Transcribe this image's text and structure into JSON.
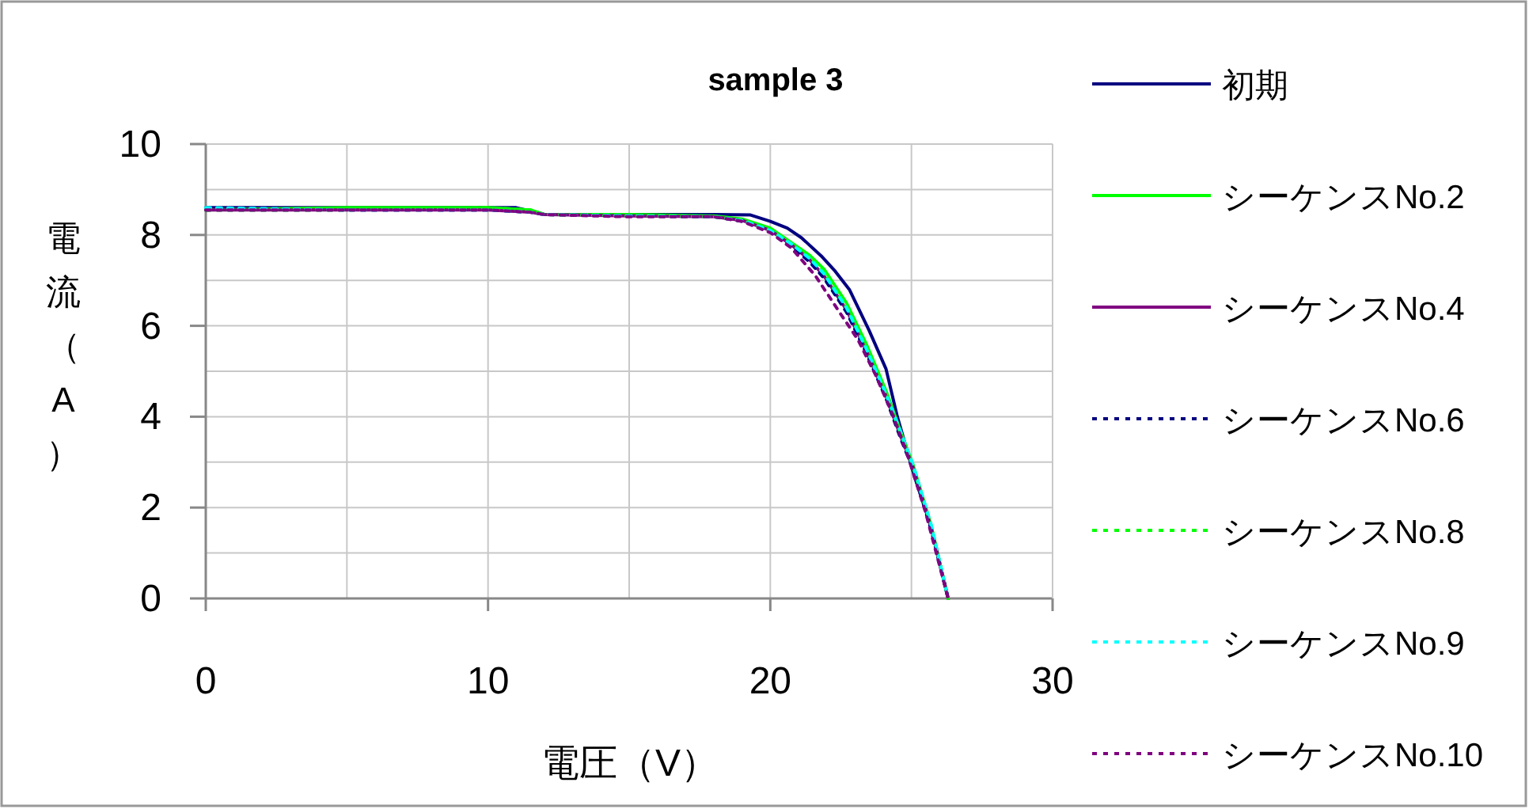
{
  "chart_data": {
    "type": "line",
    "title": "sample 3",
    "xlabel": "電圧（V）",
    "ylabel": "電流（A）",
    "xlim": [
      0,
      30
    ],
    "ylim": [
      0,
      10
    ],
    "xticks": [
      0,
      {
        "value": 5,
        "label": null
      },
      10,
      {
        "value": 15,
        "label": null
      },
      20,
      {
        "value": 25,
        "label": null
      },
      30
    ],
    "yticks": [
      0,
      {
        "value": 1,
        "label": null
      },
      2,
      {
        "value": 3,
        "label": null
      },
      4,
      {
        "value": 5,
        "label": null
      },
      6,
      {
        "value": 7,
        "label": null
      },
      8,
      {
        "value": 9,
        "label": null
      },
      10
    ],
    "grid": true,
    "legend": "right",
    "marker": "none",
    "series": [
      {
        "name": "初期",
        "color": "#000080",
        "line_style": "solid",
        "x": [
          0,
          5,
          10,
          11,
          12,
          15,
          18,
          19.3,
          20,
          20.6,
          21.1,
          21.8,
          22.3,
          22.8,
          23.5,
          24.1,
          24.5,
          25.1,
          25.7,
          26.3
        ],
        "values": [
          8.6,
          8.6,
          8.6,
          8.6,
          8.45,
          8.45,
          8.45,
          8.44,
          8.3,
          8.15,
          7.94,
          7.54,
          7.2,
          6.8,
          5.9,
          5.05,
          4.0,
          2.7,
          1.57,
          0
        ]
      },
      {
        "name": "シーケンスNo.2",
        "color": "#00ff00",
        "line_style": "solid",
        "x": [
          0,
          5,
          10,
          11.5,
          12,
          15,
          18,
          19,
          20,
          20.75,
          21.4,
          21.9,
          22.7,
          23.4,
          24.1,
          24.6,
          25.05,
          25.7,
          26.3
        ],
        "values": [
          8.55,
          8.6,
          8.6,
          8.55,
          8.45,
          8.45,
          8.42,
          8.35,
          8.15,
          7.83,
          7.55,
          7.25,
          6.5,
          5.6,
          4.57,
          3.7,
          2.96,
          1.6,
          0
        ]
      },
      {
        "name": "シーケンスNo.4",
        "color": "#800080",
        "line_style": "solid",
        "x": [
          0,
          5,
          10,
          11.5,
          12,
          15,
          18,
          19,
          20,
          20.75,
          21.4,
          21.9,
          22.7,
          23.4,
          24.1,
          24.6,
          25.05,
          25.7,
          26.3
        ],
        "values": [
          8.55,
          8.55,
          8.55,
          8.5,
          8.45,
          8.42,
          8.4,
          8.32,
          8.1,
          7.78,
          7.45,
          7.1,
          6.35,
          5.45,
          4.45,
          3.6,
          2.9,
          1.55,
          0
        ]
      },
      {
        "name": "シーケンスNo.6",
        "color": "#000080",
        "line_style": "dotted",
        "x": [
          0,
          5,
          10,
          11.5,
          12,
          15,
          18,
          19,
          20,
          20.75,
          21.4,
          21.9,
          22.7,
          23.4,
          24.1,
          24.6,
          25.05,
          25.7,
          26.3
        ],
        "values": [
          8.55,
          8.55,
          8.55,
          8.5,
          8.45,
          8.42,
          8.4,
          8.3,
          8.08,
          7.75,
          7.4,
          7.05,
          6.3,
          5.4,
          4.4,
          3.55,
          2.85,
          1.5,
          0
        ]
      },
      {
        "name": "シーケンスNo.8",
        "color": "#00ff00",
        "line_style": "dotted",
        "x": [
          0,
          5,
          10,
          11.5,
          12,
          15,
          18,
          19,
          20,
          20.75,
          21.4,
          21.9,
          22.7,
          23.4,
          24.1,
          24.6,
          25.05,
          25.7,
          26.3
        ],
        "values": [
          8.55,
          8.55,
          8.6,
          8.55,
          8.45,
          8.42,
          8.4,
          8.32,
          8.1,
          7.8,
          7.5,
          7.15,
          6.4,
          5.5,
          4.5,
          3.65,
          2.9,
          1.6,
          0
        ]
      },
      {
        "name": "シーケンスNo.9",
        "color": "#00ffff",
        "line_style": "dotted",
        "x": [
          0,
          5,
          10,
          11.5,
          12,
          15,
          18,
          19,
          20,
          20.75,
          21.4,
          21.9,
          22.7,
          23.4,
          24.1,
          24.6,
          25.05,
          25.7,
          26.3
        ],
        "values": [
          8.6,
          8.55,
          8.55,
          8.5,
          8.45,
          8.42,
          8.4,
          8.32,
          8.1,
          7.8,
          7.48,
          7.15,
          6.4,
          5.5,
          4.5,
          3.7,
          2.95,
          1.62,
          0
        ]
      },
      {
        "name": "シーケンスNo.10",
        "color": "#800080",
        "line_style": "dotted",
        "x": [
          0,
          5,
          10,
          11.5,
          12,
          15,
          18,
          19,
          20,
          20.75,
          21.6,
          22.43,
          23.1,
          23.73,
          24.3,
          24.85,
          25.5,
          26.3
        ],
        "values": [
          8.55,
          8.55,
          8.55,
          8.5,
          8.45,
          8.4,
          8.4,
          8.3,
          8.05,
          7.71,
          7.1,
          6.32,
          5.7,
          4.92,
          4.1,
          3.18,
          1.9,
          0
        ]
      }
    ]
  }
}
